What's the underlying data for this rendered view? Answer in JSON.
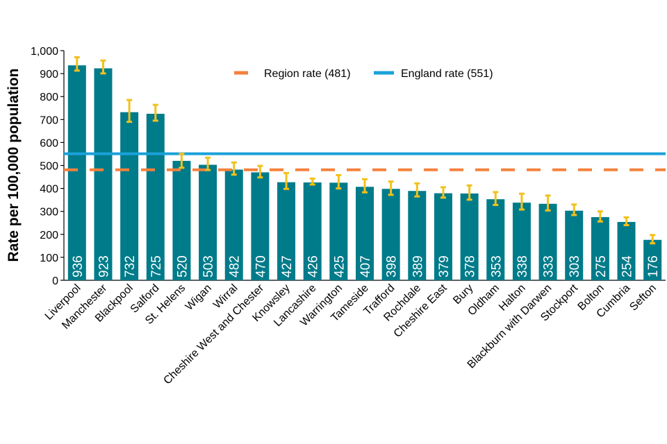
{
  "chart_data": {
    "type": "bar",
    "title": "",
    "xlabel": "",
    "ylabel": "Rate per 100,000 population",
    "ylim": [
      0,
      1000
    ],
    "yticks": [
      0,
      100,
      200,
      300,
      400,
      500,
      600,
      700,
      800,
      900,
      1000
    ],
    "ytick_labels": [
      "0",
      "100",
      "200",
      "300",
      "400",
      "500",
      "600",
      "700",
      "800",
      "900",
      "1,000"
    ],
    "grid": false,
    "legend_position": "top-center",
    "categories": [
      "Liverpool",
      "Manchester",
      "Blackpool",
      "Salford",
      "St. Helens",
      "Wigan",
      "Wirral",
      "Cheshire West and Chester",
      "Knowsley",
      "Lancashire",
      "Warrington",
      "Tameside",
      "Trafford",
      "Rochdale",
      "Cheshire East",
      "Bury",
      "Oldham",
      "Halton",
      "Blackburn with Darwen",
      "Stockport",
      "Bolton",
      "Cumbria",
      "Sefton"
    ],
    "values": [
      936,
      923,
      732,
      725,
      520,
      503,
      482,
      470,
      427,
      426,
      425,
      407,
      398,
      389,
      379,
      378,
      353,
      338,
      333,
      303,
      275,
      254,
      176
    ],
    "ci_lower": [
      913,
      901,
      690,
      695,
      490,
      480,
      460,
      448,
      398,
      417,
      400,
      383,
      372,
      365,
      360,
      351,
      328,
      308,
      304,
      284,
      256,
      240,
      161
    ],
    "ci_upper": [
      971,
      957,
      785,
      764,
      551,
      534,
      513,
      498,
      467,
      443,
      458,
      440,
      430,
      422,
      405,
      413,
      384,
      377,
      369,
      330,
      300,
      274,
      197
    ],
    "reference_lines": [
      {
        "name": "Region rate (481)",
        "value": 481,
        "style": "dashed",
        "color": "#f5813c"
      },
      {
        "name": "England rate (551)",
        "value": 551,
        "style": "solid",
        "color": "#1aa1d9"
      }
    ],
    "colors": {
      "bar": "#007b8a",
      "error_bar": "#f2c11c",
      "value_label": "#ffffff"
    }
  }
}
